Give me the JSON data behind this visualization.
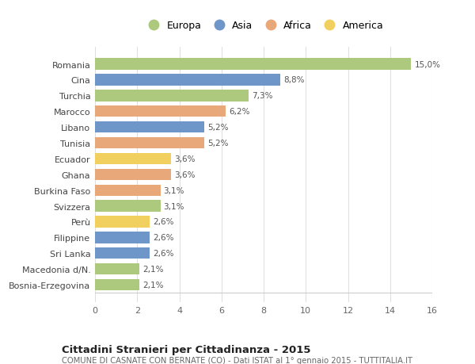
{
  "countries": [
    "Bosnia-Erzegovina",
    "Macedonia d/N.",
    "Sri Lanka",
    "Filippine",
    "Perù",
    "Svizzera",
    "Burkina Faso",
    "Ghana",
    "Ecuador",
    "Tunisia",
    "Libano",
    "Marocco",
    "Turchia",
    "Cina",
    "Romania"
  ],
  "values": [
    2.1,
    2.1,
    2.6,
    2.6,
    2.6,
    3.1,
    3.1,
    3.6,
    3.6,
    5.2,
    5.2,
    6.2,
    7.3,
    8.8,
    15.0
  ],
  "bar_colors": [
    "#adc97d",
    "#adc97d",
    "#6e96c8",
    "#6e96c8",
    "#f2d060",
    "#adc97d",
    "#e8a87a",
    "#e8a87a",
    "#f2d060",
    "#e8a87a",
    "#6e96c8",
    "#e8a87a",
    "#adc97d",
    "#6e96c8",
    "#adc97d"
  ],
  "xlim": [
    0,
    16
  ],
  "xticks": [
    0,
    2,
    4,
    6,
    8,
    10,
    12,
    14,
    16
  ],
  "title": "Cittadini Stranieri per Cittadinanza - 2015",
  "subtitle": "COMUNE DI CASNATE CON BERNATE (CO) - Dati ISTAT al 1° gennaio 2015 - TUTTITALIA.IT",
  "legend_labels": [
    "Europa",
    "Asia",
    "Africa",
    "America"
  ],
  "legend_colors": [
    "#adc97d",
    "#6e96c8",
    "#e8a87a",
    "#f2d060"
  ],
  "bg_color": "#ffffff",
  "grid_color": "#e0e0e0",
  "bar_height": 0.72,
  "value_labels": [
    "2,1%",
    "2,1%",
    "2,6%",
    "2,6%",
    "2,6%",
    "3,1%",
    "3,1%",
    "3,6%",
    "3,6%",
    "5,2%",
    "5,2%",
    "6,2%",
    "7,3%",
    "8,8%",
    "15,0%"
  ]
}
